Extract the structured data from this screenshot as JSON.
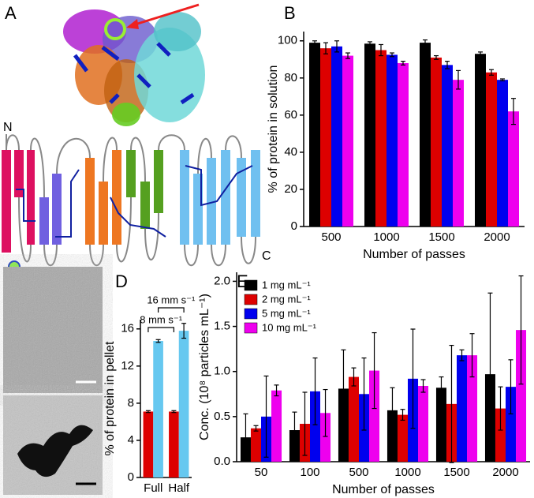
{
  "panel_labels": [
    "A",
    "B",
    "C",
    "D",
    "E"
  ],
  "topology_labels": [
    "N",
    "C"
  ],
  "chart_data": [
    {
      "type": "bar",
      "ylabel": "% of protein in solution",
      "xlabel": "Number of passes",
      "categories": [
        "500",
        "1000",
        "1500",
        "2000"
      ],
      "series": [
        {
          "color": "#000000",
          "values": [
            99,
            98.5,
            99,
            93
          ],
          "errors": [
            1,
            1,
            1.5,
            1
          ]
        },
        {
          "color": "#dd0000",
          "values": [
            96,
            95,
            91,
            83
          ],
          "errors": [
            3,
            3,
            1,
            1.5
          ]
        },
        {
          "color": "#0000ee",
          "values": [
            97,
            92.5,
            87,
            79
          ],
          "errors": [
            3,
            1,
            2,
            0.5
          ]
        },
        {
          "color": "#ee00ee",
          "values": [
            92,
            88,
            79,
            62
          ],
          "errors": [
            1.5,
            1,
            5,
            7
          ]
        }
      ],
      "ylim": [
        0,
        105
      ],
      "yticks": [
        0,
        20,
        40,
        60,
        80,
        100
      ]
    },
    {
      "type": "bar",
      "ylabel": "% of protein in pellet",
      "categories": [
        "Full",
        "Half"
      ],
      "series": [
        {
          "color": "#dd0000",
          "values": [
            7.1,
            7.1
          ],
          "errors": [
            0.1,
            0.1
          ]
        },
        {
          "color": "#66c8f0",
          "values": [
            14.7,
            15.8
          ],
          "errors": [
            0.15,
            0.8
          ]
        }
      ],
      "annotations": [
        "8 mm s⁻¹",
        "16 mm s⁻¹"
      ],
      "ylim": [
        0,
        17
      ],
      "yticks": [
        0,
        4,
        8,
        12,
        16
      ]
    },
    {
      "type": "bar",
      "ylabel": "Conc. (10⁸ particles mL⁻¹)",
      "xlabel": "Number of passes",
      "categories": [
        "50",
        "100",
        "500",
        "1000",
        "1500",
        "2000"
      ],
      "series": [
        {
          "name": "1 mg mL⁻¹",
          "color": "#000000",
          "values": [
            0.27,
            0.35,
            0.81,
            0.57,
            0.82,
            0.97
          ],
          "errors": [
            0.26,
            0.2,
            0.43,
            0.25,
            0.12,
            0.9
          ]
        },
        {
          "name": "2 mg mL⁻¹",
          "color": "#dd0000",
          "values": [
            0.37,
            0.42,
            0.94,
            0.52,
            0.64,
            0.59
          ],
          "errors": [
            0.03,
            0.35,
            0.1,
            0.06,
            0.65,
            0.24
          ]
        },
        {
          "name": "5 mg mL⁻¹",
          "color": "#0000ee",
          "values": [
            0.5,
            0.78,
            0.75,
            0.92,
            1.18,
            0.83
          ],
          "errors": [
            0.45,
            0.37,
            0.4,
            0.55,
            0.06,
            0.3
          ]
        },
        {
          "name": "10 mg mL⁻¹",
          "color": "#ee00ee",
          "values": [
            0.79,
            0.54,
            1.01,
            0.84,
            1.18,
            1.46
          ],
          "errors": [
            0.06,
            0.26,
            0.42,
            0.07,
            0.24,
            0.6
          ]
        }
      ],
      "legend": "upper-left",
      "ylim": [
        0,
        2.1
      ],
      "yticks": [
        {
          "value": 0,
          "label": "0.0"
        },
        0.5,
        {
          "value": 1,
          "label": "1.0"
        },
        1.5,
        {
          "value": 2,
          "label": "2.0"
        }
      ]
    }
  ]
}
